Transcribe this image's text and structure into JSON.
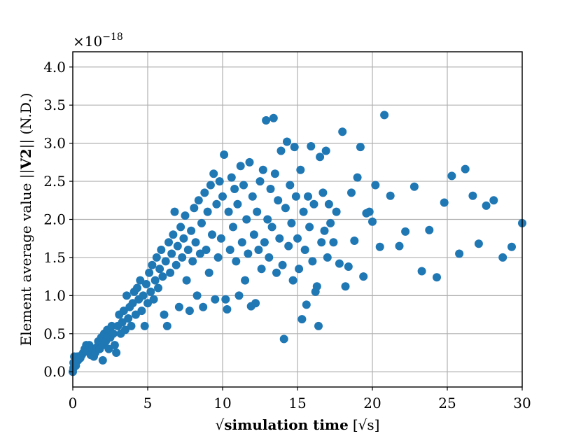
{
  "chart_data": {
    "type": "scatter",
    "xlabel_prefix": "√",
    "xlabel_bold": "simulation time",
    "xlabel_unit": "[√s]",
    "ylabel_prefix": "Element average value ||",
    "ylabel_bold": "V2",
    "ylabel_suffix": "|| (N.D.)",
    "y_offset_label": "×10",
    "y_offset_exponent": "−18",
    "xlim": [
      0,
      30
    ],
    "ylim": [
      -0.2,
      4.2
    ],
    "x_ticks": [
      "0",
      "5",
      "10",
      "15",
      "20",
      "25",
      "30"
    ],
    "y_ticks": [
      "0.0",
      "0.5",
      "1.0",
      "1.5",
      "2.0",
      "2.5",
      "3.0",
      "3.5",
      "4.0"
    ],
    "grid": true,
    "color": "#1f77b4",
    "points": [
      [
        0.0,
        0.0
      ],
      [
        0.05,
        0.05
      ],
      [
        0.1,
        0.1
      ],
      [
        0.15,
        0.15
      ],
      [
        0.1,
        0.2
      ],
      [
        0.2,
        0.08
      ],
      [
        0.25,
        0.18
      ],
      [
        0.05,
        0.12
      ],
      [
        0.3,
        0.2
      ],
      [
        0.35,
        0.15
      ],
      [
        0.2,
        0.12
      ],
      [
        0.5,
        0.18
      ],
      [
        0.6,
        0.22
      ],
      [
        0.7,
        0.25
      ],
      [
        0.8,
        0.3
      ],
      [
        0.9,
        0.35
      ],
      [
        1.0,
        0.28
      ],
      [
        1.1,
        0.35
      ],
      [
        1.2,
        0.22
      ],
      [
        1.3,
        0.3
      ],
      [
        1.4,
        0.2
      ],
      [
        1.5,
        0.25
      ],
      [
        1.6,
        0.32
      ],
      [
        1.7,
        0.4
      ],
      [
        1.8,
        0.3
      ],
      [
        1.9,
        0.45
      ],
      [
        2.0,
        0.35
      ],
      [
        2.1,
        0.5
      ],
      [
        2.0,
        0.15
      ],
      [
        2.2,
        0.4
      ],
      [
        2.3,
        0.55
      ],
      [
        2.4,
        0.3
      ],
      [
        2.5,
        0.45
      ],
      [
        2.6,
        0.6
      ],
      [
        2.7,
        0.5
      ],
      [
        2.8,
        0.35
      ],
      [
        2.9,
        0.25
      ],
      [
        3.0,
        0.6
      ],
      [
        3.1,
        0.75
      ],
      [
        3.2,
        0.5
      ],
      [
        3.3,
        0.65
      ],
      [
        3.4,
        0.8
      ],
      [
        3.5,
        0.55
      ],
      [
        3.6,
        1.0
      ],
      [
        3.7,
        0.7
      ],
      [
        3.8,
        0.85
      ],
      [
        3.9,
        0.6
      ],
      [
        4.0,
        0.9
      ],
      [
        4.1,
        1.05
      ],
      [
        4.2,
        0.75
      ],
      [
        4.3,
        1.1
      ],
      [
        4.4,
        0.95
      ],
      [
        4.5,
        1.2
      ],
      [
        4.6,
        0.8
      ],
      [
        4.7,
        1.0
      ],
      [
        4.8,
        0.6
      ],
      [
        4.9,
        1.15
      ],
      [
        5.0,
        0.9
      ],
      [
        5.1,
        1.3
      ],
      [
        5.2,
        1.05
      ],
      [
        5.3,
        1.4
      ],
      [
        5.4,
        0.95
      ],
      [
        5.5,
        1.2
      ],
      [
        5.6,
        1.5
      ],
      [
        5.7,
        1.1
      ],
      [
        5.8,
        1.35
      ],
      [
        5.9,
        1.6
      ],
      [
        6.0,
        1.25
      ],
      [
        6.1,
        0.75
      ],
      [
        6.2,
        1.45
      ],
      [
        6.3,
        0.6
      ],
      [
        6.4,
        1.7
      ],
      [
        6.5,
        1.3
      ],
      [
        6.6,
        1.55
      ],
      [
        6.7,
        1.8
      ],
      [
        6.8,
        2.1
      ],
      [
        6.9,
        1.4
      ],
      [
        7.0,
        1.65
      ],
      [
        7.1,
        0.85
      ],
      [
        7.2,
        1.9
      ],
      [
        7.3,
        1.5
      ],
      [
        7.4,
        1.75
      ],
      [
        7.5,
        2.05
      ],
      [
        7.6,
        1.2
      ],
      [
        7.7,
        1.6
      ],
      [
        7.8,
        0.8
      ],
      [
        7.9,
        1.85
      ],
      [
        8.0,
        1.45
      ],
      [
        8.1,
        2.15
      ],
      [
        8.2,
        1.7
      ],
      [
        8.3,
        1.0
      ],
      [
        8.4,
        2.25
      ],
      [
        8.5,
        1.55
      ],
      [
        8.6,
        1.95
      ],
      [
        8.7,
        0.85
      ],
      [
        8.8,
        2.35
      ],
      [
        8.9,
        1.6
      ],
      [
        9.0,
        2.1
      ],
      [
        9.1,
        1.3
      ],
      [
        9.2,
        2.45
      ],
      [
        9.3,
        1.8
      ],
      [
        9.4,
        2.6
      ],
      [
        9.5,
        0.95
      ],
      [
        9.6,
        2.2
      ],
      [
        9.7,
        1.5
      ],
      [
        9.8,
        2.5
      ],
      [
        9.9,
        1.75
      ],
      [
        10.0,
        2.3
      ],
      [
        10.1,
        2.85
      ],
      [
        10.2,
        0.95
      ],
      [
        10.3,
        0.82
      ],
      [
        10.4,
        2.1
      ],
      [
        10.5,
        1.6
      ],
      [
        10.6,
        2.55
      ],
      [
        10.7,
        1.9
      ],
      [
        10.8,
        2.4
      ],
      [
        10.9,
        1.45
      ],
      [
        11.0,
        2.2
      ],
      [
        11.1,
        1.0
      ],
      [
        11.2,
        2.7
      ],
      [
        11.3,
        1.7
      ],
      [
        11.4,
        2.45
      ],
      [
        11.5,
        1.2
      ],
      [
        11.6,
        2.0
      ],
      [
        11.7,
        1.55
      ],
      [
        11.8,
        2.75
      ],
      [
        11.9,
        0.86
      ],
      [
        12.0,
        2.3
      ],
      [
        12.1,
        1.8
      ],
      [
        12.2,
        0.9
      ],
      [
        12.3,
        2.1
      ],
      [
        12.4,
        1.6
      ],
      [
        12.5,
        2.5
      ],
      [
        12.6,
        1.35
      ],
      [
        12.7,
        2.65
      ],
      [
        12.8,
        1.7
      ],
      [
        12.9,
        3.3
      ],
      [
        13.0,
        2.0
      ],
      [
        13.1,
        1.5
      ],
      [
        13.2,
        2.4
      ],
      [
        13.3,
        1.9
      ],
      [
        13.4,
        3.33
      ],
      [
        13.5,
        2.6
      ],
      [
        13.6,
        1.3
      ],
      [
        13.7,
        2.25
      ],
      [
        13.8,
        1.75
      ],
      [
        13.9,
        2.9
      ],
      [
        14.0,
        1.4
      ],
      [
        14.1,
        0.43
      ],
      [
        14.2,
        2.15
      ],
      [
        14.3,
        3.02
      ],
      [
        14.4,
        1.65
      ],
      [
        14.5,
        2.45
      ],
      [
        14.6,
        1.95
      ],
      [
        14.7,
        1.2
      ],
      [
        14.8,
        2.95
      ],
      [
        14.9,
        2.3
      ],
      [
        15.0,
        1.75
      ],
      [
        15.1,
        1.35
      ],
      [
        15.2,
        2.65
      ],
      [
        15.3,
        0.69
      ],
      [
        15.4,
        2.1
      ],
      [
        15.5,
        1.6
      ],
      [
        15.6,
        0.88
      ],
      [
        15.7,
        2.3
      ],
      [
        15.8,
        1.9
      ],
      [
        15.9,
        2.96
      ],
      [
        16.0,
        1.45
      ],
      [
        16.1,
        2.2
      ],
      [
        16.2,
        1.05
      ],
      [
        16.3,
        1.12
      ],
      [
        16.4,
        0.6
      ],
      [
        16.5,
        2.82
      ],
      [
        16.6,
        1.7
      ],
      [
        16.7,
        2.35
      ],
      [
        16.8,
        1.85
      ],
      [
        16.9,
        2.9
      ],
      [
        17.0,
        1.5
      ],
      [
        17.1,
        2.2
      ],
      [
        17.2,
        1.95
      ],
      [
        17.4,
        1.7
      ],
      [
        17.6,
        2.1
      ],
      [
        17.8,
        1.42
      ],
      [
        18.0,
        3.15
      ],
      [
        18.2,
        1.12
      ],
      [
        18.4,
        1.38
      ],
      [
        18.6,
        2.35
      ],
      [
        18.8,
        1.72
      ],
      [
        19.0,
        2.55
      ],
      [
        19.2,
        2.95
      ],
      [
        19.4,
        1.25
      ],
      [
        19.6,
        2.08
      ],
      [
        19.8,
        2.1
      ],
      [
        20.0,
        1.97
      ],
      [
        20.2,
        2.45
      ],
      [
        20.5,
        1.64
      ],
      [
        20.8,
        3.37
      ],
      [
        21.2,
        2.31
      ],
      [
        21.8,
        1.65
      ],
      [
        22.2,
        1.84
      ],
      [
        22.8,
        2.43
      ],
      [
        23.3,
        1.32
      ],
      [
        23.8,
        1.86
      ],
      [
        24.3,
        1.24
      ],
      [
        24.8,
        2.22
      ],
      [
        25.3,
        2.57
      ],
      [
        25.8,
        1.55
      ],
      [
        26.2,
        2.66
      ],
      [
        26.7,
        2.31
      ],
      [
        27.1,
        1.68
      ],
      [
        27.6,
        2.18
      ],
      [
        28.1,
        2.25
      ],
      [
        28.7,
        1.5
      ],
      [
        29.3,
        1.64
      ],
      [
        30.0,
        1.95
      ]
    ]
  }
}
